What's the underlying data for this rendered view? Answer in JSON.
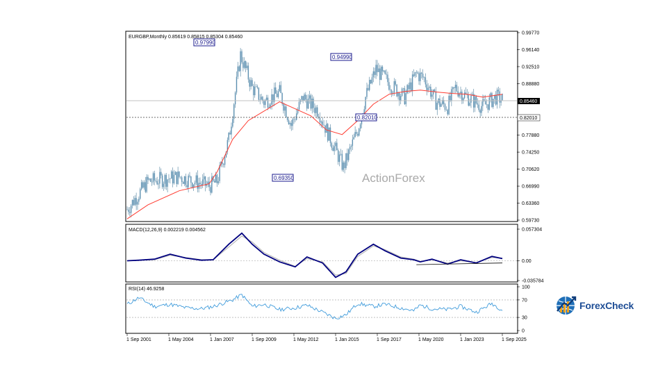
{
  "chart_data": [
    {
      "type": "candlestick",
      "info": "EURGBP,Monthly  0.85619 0.85815 0.85304 0.85460",
      "watermark": "ActionForex",
      "y_ticks": [
        "0.99770",
        "0.96140",
        "0.92510",
        "0.88880",
        "0.85460",
        "0.82010",
        "0.77880",
        "0.74250",
        "0.70620",
        "0.66990",
        "0.63360",
        "0.59730"
      ],
      "x_ticks": [
        "1 Sep 2001",
        "1 May 2004",
        "1 Jan 2007",
        "1 Sep 2009",
        "1 May 2012",
        "1 Jan 2015",
        "1 Sep 2017",
        "1 May 2020",
        "1 Jan 2023",
        "1 Sep 2025"
      ],
      "current_price": "0.85460",
      "support_level": "0.82010",
      "annotations": [
        "0.97990",
        "0.94990",
        "0.82010",
        "0.69350"
      ],
      "ylim": [
        0.5973,
        0.9977
      ],
      "series": [
        {
          "kind": "price",
          "x": [
            "2001-09",
            "2003-01",
            "2005-01",
            "2006-12",
            "2007-06",
            "2008-03",
            "2008-12",
            "2009-09",
            "2010-06",
            "2011-06",
            "2012-03",
            "2012-12",
            "2013-12",
            "2014-06",
            "2015-07",
            "2016-06",
            "2016-12",
            "2017-08",
            "2018-06",
            "2019-06",
            "2020-03",
            "2020-09",
            "2021-06",
            "2022-03",
            "2022-09",
            "2023-06",
            "2024-06",
            "2025-04",
            "2025-09"
          ],
          "y": [
            0.62,
            0.68,
            0.69,
            0.67,
            0.68,
            0.77,
            0.95,
            0.88,
            0.85,
            0.87,
            0.8,
            0.86,
            0.83,
            0.79,
            0.71,
            0.79,
            0.86,
            0.92,
            0.89,
            0.86,
            0.91,
            0.9,
            0.85,
            0.84,
            0.88,
            0.86,
            0.84,
            0.86,
            0.855
          ]
        },
        {
          "kind": "moving-average",
          "x": [
            "2001-09",
            "2003-01",
            "2005-01",
            "2006-12",
            "2007-06",
            "2008-06",
            "2009-06",
            "2010-06",
            "2011-06",
            "2012-06",
            "2013-06",
            "2014-06",
            "2015-06",
            "2016-06",
            "2017-06",
            "2018-06",
            "2019-06",
            "2020-06",
            "2021-06",
            "2022-06",
            "2023-06",
            "2024-06",
            "2025-09"
          ],
          "y": [
            0.6,
            0.63,
            0.66,
            0.675,
            0.7,
            0.77,
            0.81,
            0.83,
            0.85,
            0.835,
            0.82,
            0.79,
            0.78,
            0.81,
            0.845,
            0.866,
            0.872,
            0.875,
            0.871,
            0.868,
            0.866,
            0.86,
            0.866
          ]
        }
      ]
    },
    {
      "type": "line",
      "label": "MACD(12,26,9) 0.002219 0.004562",
      "y_ticks": [
        "0.057304",
        "0.00",
        "-0.035784"
      ],
      "ylim": [
        -0.0358,
        0.0573
      ],
      "series": [
        {
          "kind": "macd",
          "x": [
            "2001-09",
            "2002-06",
            "2003-06",
            "2004-06",
            "2005-06",
            "2006-06",
            "2007-03",
            "2008-03",
            "2009-01",
            "2009-09",
            "2010-06",
            "2011-06",
            "2012-06",
            "2013-03",
            "2014-03",
            "2015-01",
            "2015-09",
            "2016-06",
            "2017-06",
            "2018-03",
            "2019-03",
            "2020-01",
            "2020-06",
            "2021-03",
            "2022-03",
            "2023-01",
            "2024-01",
            "2025-01",
            "2025-09"
          ],
          "y": [
            0.0,
            0.001,
            0.003,
            0.012,
            0.005,
            0.001,
            0.002,
            0.03,
            0.05,
            0.03,
            0.012,
            -0.002,
            -0.011,
            0.007,
            -0.004,
            -0.03,
            -0.02,
            0.012,
            0.03,
            0.018,
            0.005,
            0.002,
            -0.002,
            0.003,
            -0.006,
            0.002,
            -0.004,
            0.008,
            0.004
          ]
        },
        {
          "kind": "signal",
          "x": [
            "2001-09",
            "2002-06",
            "2003-06",
            "2004-06",
            "2005-06",
            "2006-06",
            "2007-03",
            "2008-03",
            "2009-01",
            "2009-09",
            "2010-06",
            "2011-06",
            "2012-06",
            "2013-03",
            "2014-03",
            "2015-01",
            "2015-09",
            "2016-06",
            "2017-06",
            "2018-03",
            "2019-03",
            "2020-01",
            "2020-06",
            "2021-03",
            "2022-03",
            "2023-01",
            "2024-01",
            "2025-01",
            "2025-09"
          ],
          "y": [
            0.0,
            0.001,
            0.002,
            0.01,
            0.006,
            0.002,
            0.002,
            0.025,
            0.045,
            0.034,
            0.015,
            0.001,
            -0.01,
            0.004,
            -0.002,
            -0.026,
            -0.023,
            0.008,
            0.027,
            0.02,
            0.007,
            0.003,
            -0.001,
            0.002,
            -0.004,
            0.0,
            -0.003,
            0.006,
            0.005
          ]
        },
        {
          "kind": "trendline",
          "x": [
            "2020-03",
            "2025-09"
          ],
          "y": [
            -0.007,
            -0.004
          ]
        }
      ]
    },
    {
      "type": "line",
      "label": "RSI(14) 46.9258",
      "y_ticks": [
        "100",
        "70",
        "30",
        "0"
      ],
      "ylim": [
        0,
        100
      ],
      "levels": [
        70,
        30
      ],
      "series": [
        {
          "kind": "rsi",
          "x": [
            "2001-09",
            "2002-06",
            "2003-06",
            "2004-06",
            "2005-06",
            "2006-06",
            "2007-03",
            "2008-06",
            "2009-01",
            "2009-09",
            "2010-06",
            "2011-06",
            "2012-06",
            "2013-03",
            "2014-03",
            "2015-01",
            "2015-09",
            "2016-06",
            "2017-06",
            "2018-03",
            "2019-03",
            "2020-01",
            "2020-06",
            "2021-03",
            "2022-03",
            "2023-01",
            "2024-01",
            "2025-01",
            "2025-09"
          ],
          "y": [
            60,
            75,
            55,
            60,
            52,
            50,
            55,
            70,
            82,
            55,
            60,
            48,
            52,
            58,
            42,
            28,
            36,
            62,
            55,
            60,
            52,
            45,
            58,
            50,
            48,
            55,
            42,
            62,
            47
          ]
        }
      ]
    }
  ],
  "logo": {
    "text": "ForexCheck"
  }
}
